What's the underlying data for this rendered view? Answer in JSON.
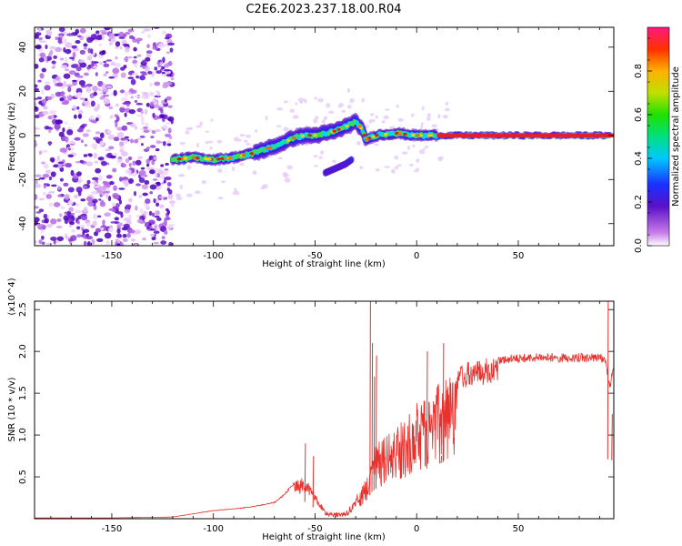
{
  "figure": {
    "title": "C2E6.2023.237.18.00.R04"
  },
  "chart_data": [
    {
      "type": "heatmap",
      "xlabel": "Height of straight line (km)",
      "ylabel": "Frequency (Hz)",
      "xlim": [
        -188,
        97
      ],
      "ylim": [
        -50,
        49
      ],
      "xticks": [
        -150,
        -100,
        -50,
        0,
        50
      ],
      "yticks": [
        -40,
        -20,
        0,
        20,
        40
      ],
      "colorbar": {
        "label": "Normalized spectral amplitude",
        "range": [
          0,
          1
        ],
        "ticks": [
          0.0,
          0.2,
          0.4,
          0.6,
          0.8
        ]
      },
      "noise_region_x": [
        -188,
        -120
      ],
      "ridge": {
        "x": [
          -120,
          -110,
          -100,
          -90,
          -80,
          -70,
          -60,
          -55,
          -50,
          -45,
          -40,
          -35,
          -30,
          -27,
          -25,
          -20,
          -10,
          0,
          10,
          25,
          50,
          75,
          95
        ],
        "y": [
          -11,
          -10,
          -11,
          -10,
          -8,
          -5,
          -1,
          0,
          0,
          1,
          2,
          4,
          6,
          3,
          -2,
          0,
          1,
          0,
          0,
          0,
          0,
          0,
          0
        ]
      },
      "branch": {
        "x": [
          -45,
          -40,
          -35,
          -32
        ],
        "y": [
          -17,
          -15,
          -13,
          -11
        ]
      }
    },
    {
      "type": "line",
      "xlabel": "Height of straight line (km)",
      "ylabel": "SNR (10 * v/v)",
      "y_multiplier": "(x10^4)",
      "xlim": [
        -188,
        97
      ],
      "ylim": [
        0,
        2.6
      ],
      "xticks": [
        -150,
        -100,
        -50,
        0,
        50
      ],
      "yticks": [
        0.5,
        1.0,
        1.5,
        2.0,
        2.5
      ],
      "line_color": "#e8302c",
      "envelope": {
        "x": [
          -188,
          -150,
          -120,
          -110,
          -100,
          -90,
          -80,
          -70,
          -65,
          -60,
          -55,
          -50,
          -45,
          -40,
          -35,
          -30,
          -25,
          -22,
          -20,
          -15,
          -10,
          -5,
          0,
          5,
          10,
          15,
          20,
          25,
          30,
          40,
          50,
          60,
          70,
          80,
          90,
          93,
          95,
          97
        ],
        "y": [
          0.01,
          0.01,
          0.02,
          0.06,
          0.1,
          0.12,
          0.15,
          0.2,
          0.3,
          0.45,
          0.5,
          0.3,
          0.1,
          0.06,
          0.08,
          0.2,
          0.5,
          0.8,
          0.9,
          1.0,
          1.1,
          1.25,
          1.4,
          1.5,
          1.6,
          1.75,
          1.82,
          1.87,
          1.9,
          1.95,
          1.97,
          1.98,
          1.98,
          1.98,
          1.98,
          1.95,
          1.6,
          1.9
        ]
      },
      "spikes": [
        {
          "x": -23,
          "y": 2.6
        },
        {
          "x": -22,
          "y": 2.1
        },
        {
          "x": -21,
          "y": 1.7
        },
        {
          "x": -20,
          "y": 1.95
        },
        {
          "x": -55,
          "y": 0.9
        },
        {
          "x": -51,
          "y": 0.75
        },
        {
          "x": 5,
          "y": 2.0
        },
        {
          "x": 13,
          "y": 2.1
        },
        {
          "x": 12,
          "y": 0.75
        },
        {
          "x": 94,
          "y": 2.6
        },
        {
          "x": 96,
          "y": 1.25
        }
      ]
    }
  ]
}
